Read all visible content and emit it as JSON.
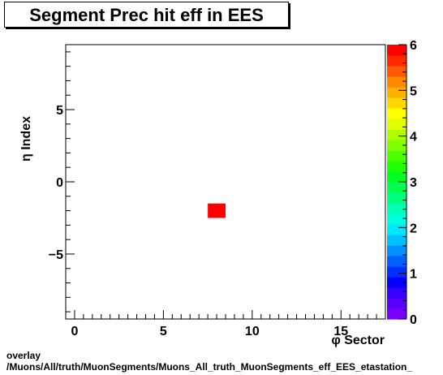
{
  "chart_data": {
    "type": "heatmap",
    "title": "Segment Prec hit eff in EES",
    "xlabel": "φ Sector",
    "ylabel": "η Index",
    "xlim": [
      -0.5,
      17.5
    ],
    "ylim": [
      -9.5,
      9.5
    ],
    "x_ticks": [
      0,
      5,
      10,
      15
    ],
    "y_ticks": [
      -5,
      0,
      5
    ],
    "cells": [
      {
        "x": 8,
        "y": -2,
        "value": 6
      }
    ],
    "colorbar": {
      "min": 0,
      "max": 6,
      "ticks": [
        0,
        1,
        2,
        3,
        4,
        5,
        6
      ]
    }
  },
  "footer": {
    "line1": "overlay",
    "line2": "/Muons/All/truth/MuonSegments/Muons_All_truth_MuonSegments_eff_EES_etastation_"
  },
  "colors": {
    "palette": [
      "#7a00ff",
      "#5a00ff",
      "#3a00ff",
      "#0000ff",
      "#0030ff",
      "#0060ff",
      "#0090ff",
      "#00c0ff",
      "#00e8ff",
      "#00ffe0",
      "#00ffb0",
      "#00ff80",
      "#00ff50",
      "#00ff20",
      "#20ff00",
      "#50ff00",
      "#80ff00",
      "#b0ff00",
      "#e0ff00",
      "#ffff00",
      "#ffd800",
      "#ffb000",
      "#ff8800",
      "#ff5a00",
      "#ff2a00",
      "#ff0000"
    ]
  }
}
